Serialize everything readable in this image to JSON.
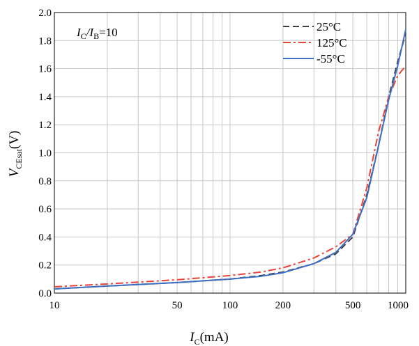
{
  "chart_data": {
    "type": "line",
    "xscale": "log",
    "xlabel": "I_C(mA)",
    "ylabel": "V_CEsat(V)",
    "xlim": [
      10,
      1000
    ],
    "ylim": [
      0,
      2.0
    ],
    "xticks": [
      "10",
      "50",
      "100",
      "200",
      "500",
      "1000"
    ],
    "yticks": [
      "0.0",
      "0.2",
      "0.4",
      "0.6",
      "0.8",
      "1.0",
      "1.2",
      "1.4",
      "1.6",
      "1.8",
      "2.0"
    ],
    "grid": true,
    "legend_position": "top-right",
    "annotation": "I_C/I_B=10",
    "series": [
      {
        "name": "25°C",
        "color": "#404040",
        "dash": "dashed",
        "x": [
          10,
          20,
          50,
          100,
          150,
          200,
          300,
          400,
          500,
          600,
          700,
          800,
          900,
          1000
        ],
        "y": [
          0.03,
          0.05,
          0.075,
          0.1,
          0.125,
          0.15,
          0.21,
          0.28,
          0.4,
          0.7,
          1.05,
          1.4,
          1.65,
          1.85
        ]
      },
      {
        "name": "125°C",
        "color": "#e8443a",
        "dash": "dashdot",
        "x": [
          10,
          20,
          50,
          100,
          150,
          200,
          300,
          400,
          500,
          600,
          700,
          800,
          900,
          1000
        ],
        "y": [
          0.045,
          0.065,
          0.095,
          0.125,
          0.15,
          0.18,
          0.25,
          0.33,
          0.42,
          0.75,
          1.15,
          1.4,
          1.55,
          1.62
        ]
      },
      {
        "name": "-55°C",
        "color": "#3f6fc5",
        "dash": "solid",
        "x": [
          10,
          20,
          50,
          100,
          150,
          200,
          300,
          400,
          500,
          600,
          700,
          800,
          900,
          1000
        ],
        "y": [
          0.03,
          0.05,
          0.075,
          0.1,
          0.12,
          0.145,
          0.21,
          0.29,
          0.42,
          0.68,
          1.05,
          1.38,
          1.62,
          1.88
        ]
      }
    ]
  },
  "labels": {
    "annotation_main": "I",
    "annotation_sub_c": "C",
    "annotation_sep": "/I",
    "annotation_sub_b": "B",
    "annotation_value": "=10",
    "xlabel_main": "I",
    "xlabel_sub": "C",
    "xlabel_unit": "(mA)",
    "ylabel_main": "V",
    "ylabel_sub": "CEsat",
    "ylabel_unit": "(V)"
  }
}
